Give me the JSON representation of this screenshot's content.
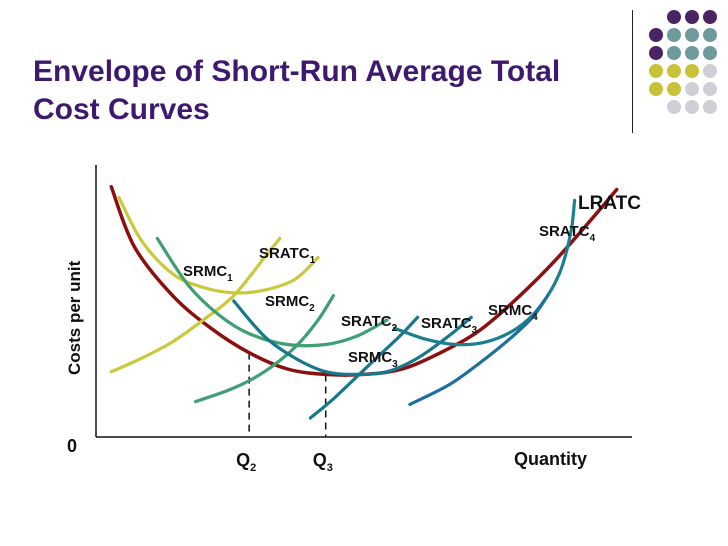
{
  "slide": {
    "title_line1": "Envelope of Short-Run Average Total",
    "title_line2": "Cost Curves"
  },
  "colors": {
    "title": "#3d1a6e",
    "lratc": "#8b0f0f",
    "srmc1": "#c9c93a",
    "sratc1": "#c9c93a",
    "srmc2": "#3f9e74",
    "sratc2": "#3f9e74",
    "srmc3": "#17788c",
    "sratc3": "#17788c",
    "srmc4": "#1c6fa0",
    "sratc4": "#1a8090",
    "dot_purple": "#4b2563",
    "dot_teal": "#6f9a9c",
    "dot_olive": "#c8c23a",
    "dot_gray": "#cfcfd8"
  },
  "chart_data": {
    "type": "line",
    "title": "Envelope of Short-Run Average Total Cost Curves",
    "ylabel": "Costs per unit",
    "xlabel": "Quantity",
    "origin_label": "0",
    "x_markers": [
      {
        "base": "Q",
        "sub": "2",
        "x": 2
      },
      {
        "base": "Q",
        "sub": "3",
        "x": 3
      }
    ],
    "series": [
      {
        "id": "lratc",
        "name": "LRATC",
        "name_sub": "",
        "color_key": "lratc",
        "points": [
          [
            0.2,
            92
          ],
          [
            0.5,
            70
          ],
          [
            1,
            52
          ],
          [
            1.5,
            40
          ],
          [
            2,
            31
          ],
          [
            2.5,
            25
          ],
          [
            3,
            23
          ],
          [
            3.5,
            23
          ],
          [
            4,
            25
          ],
          [
            4.5,
            31
          ],
          [
            5,
            39
          ],
          [
            5.5,
            51
          ],
          [
            6,
            65
          ],
          [
            6.5,
            81
          ],
          [
            6.8,
            91
          ]
        ]
      },
      {
        "id": "sratc1",
        "name": "SRATC",
        "name_sub": "1",
        "color_key": "sratc1",
        "points": [
          [
            0.3,
            88
          ],
          [
            0.6,
            72
          ],
          [
            1,
            60
          ],
          [
            1.4,
            55
          ],
          [
            1.8,
            53
          ],
          [
            2.2,
            54
          ],
          [
            2.6,
            58
          ],
          [
            2.9,
            66
          ]
        ]
      },
      {
        "id": "srmc1",
        "name": "SRMC",
        "name_sub": "1",
        "color_key": "srmc1",
        "points": [
          [
            0.2,
            24
          ],
          [
            0.6,
            29
          ],
          [
            1,
            35
          ],
          [
            1.4,
            43
          ],
          [
            1.8,
            52
          ],
          [
            2.2,
            66
          ],
          [
            2.4,
            73
          ]
        ]
      },
      {
        "id": "sratc2",
        "name": "SRATC",
        "name_sub": "2",
        "color_key": "sratc2",
        "points": [
          [
            0.8,
            73
          ],
          [
            1.2,
            56
          ],
          [
            1.6,
            45
          ],
          [
            2,
            38
          ],
          [
            2.5,
            34
          ],
          [
            3,
            34
          ],
          [
            3.4,
            37
          ],
          [
            3.8,
            43
          ]
        ]
      },
      {
        "id": "srmc2",
        "name": "SRMC",
        "name_sub": "2",
        "color_key": "srmc2",
        "points": [
          [
            1.3,
            13
          ],
          [
            1.8,
            18
          ],
          [
            2.2,
            24
          ],
          [
            2.6,
            33
          ],
          [
            2.9,
            43
          ],
          [
            3.1,
            52
          ]
        ]
      },
      {
        "id": "sratc3",
        "name": "SRATC",
        "name_sub": "3",
        "color_key": "sratc3",
        "points": [
          [
            1.8,
            50
          ],
          [
            2.2,
            37
          ],
          [
            2.6,
            29
          ],
          [
            3,
            24
          ],
          [
            3.4,
            23
          ],
          [
            3.8,
            24
          ],
          [
            4.2,
            29
          ],
          [
            4.6,
            37
          ],
          [
            4.9,
            44
          ]
        ]
      },
      {
        "id": "srmc3",
        "name": "SRMC",
        "name_sub": "3",
        "color_key": "srmc3",
        "points": [
          [
            2.8,
            7
          ],
          [
            3.1,
            14
          ],
          [
            3.4,
            22
          ],
          [
            3.7,
            30
          ],
          [
            4,
            38
          ],
          [
            4.2,
            44
          ]
        ]
      },
      {
        "id": "sratc4",
        "name": "SRATC",
        "name_sub": "4",
        "color_key": "sratc4",
        "points": [
          [
            3.9,
            40
          ],
          [
            4.3,
            36
          ],
          [
            4.7,
            34
          ],
          [
            5.1,
            35
          ],
          [
            5.5,
            40
          ],
          [
            5.8,
            48
          ],
          [
            6.05,
            60
          ],
          [
            6.2,
            75
          ],
          [
            6.25,
            87
          ]
        ]
      },
      {
        "id": "srmc4",
        "name": "SRMC",
        "name_sub": "4",
        "color_key": "srmc4",
        "points": [
          [
            4.1,
            12
          ],
          [
            4.6,
            19
          ],
          [
            5,
            27
          ],
          [
            5.4,
            36
          ],
          [
            5.7,
            44
          ],
          [
            5.9,
            52
          ]
        ]
      }
    ],
    "xlim": [
      0,
      7
    ],
    "ylim": [
      0,
      100
    ],
    "grid": false,
    "legend": "none"
  }
}
